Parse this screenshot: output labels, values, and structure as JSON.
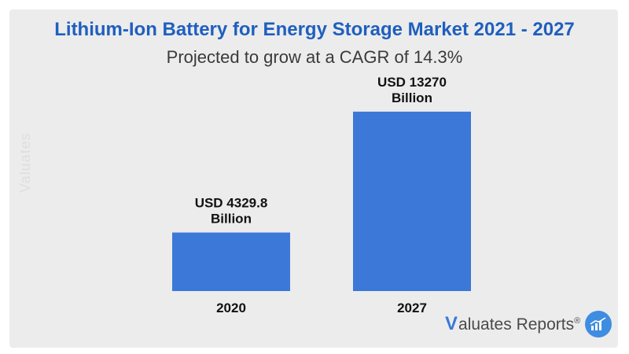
{
  "colors": {
    "title": "#1f5fbf",
    "bar": "#3c78d8",
    "panel": "#ececec"
  },
  "watermark": "Valuates",
  "brand": {
    "initial": "V",
    "name": "aluates Reports",
    "registered": "®",
    "icon": "chart-trend-icon"
  },
  "chart_data": {
    "type": "bar",
    "title": "Lithium-Ion Battery for Energy Storage Market 2021 - 2027",
    "subtitle": "Projected to grow at a CAGR of 14.3%",
    "categories": [
      "2020",
      "2027"
    ],
    "values": [
      4329.8,
      13270
    ],
    "data_labels": [
      [
        "USD 4329.8",
        "Billion"
      ],
      [
        "USD 13270",
        "Billion"
      ]
    ],
    "xlabel": "",
    "ylabel": "",
    "ylim": [
      0,
      16000
    ],
    "grid": false,
    "legend": "none"
  }
}
